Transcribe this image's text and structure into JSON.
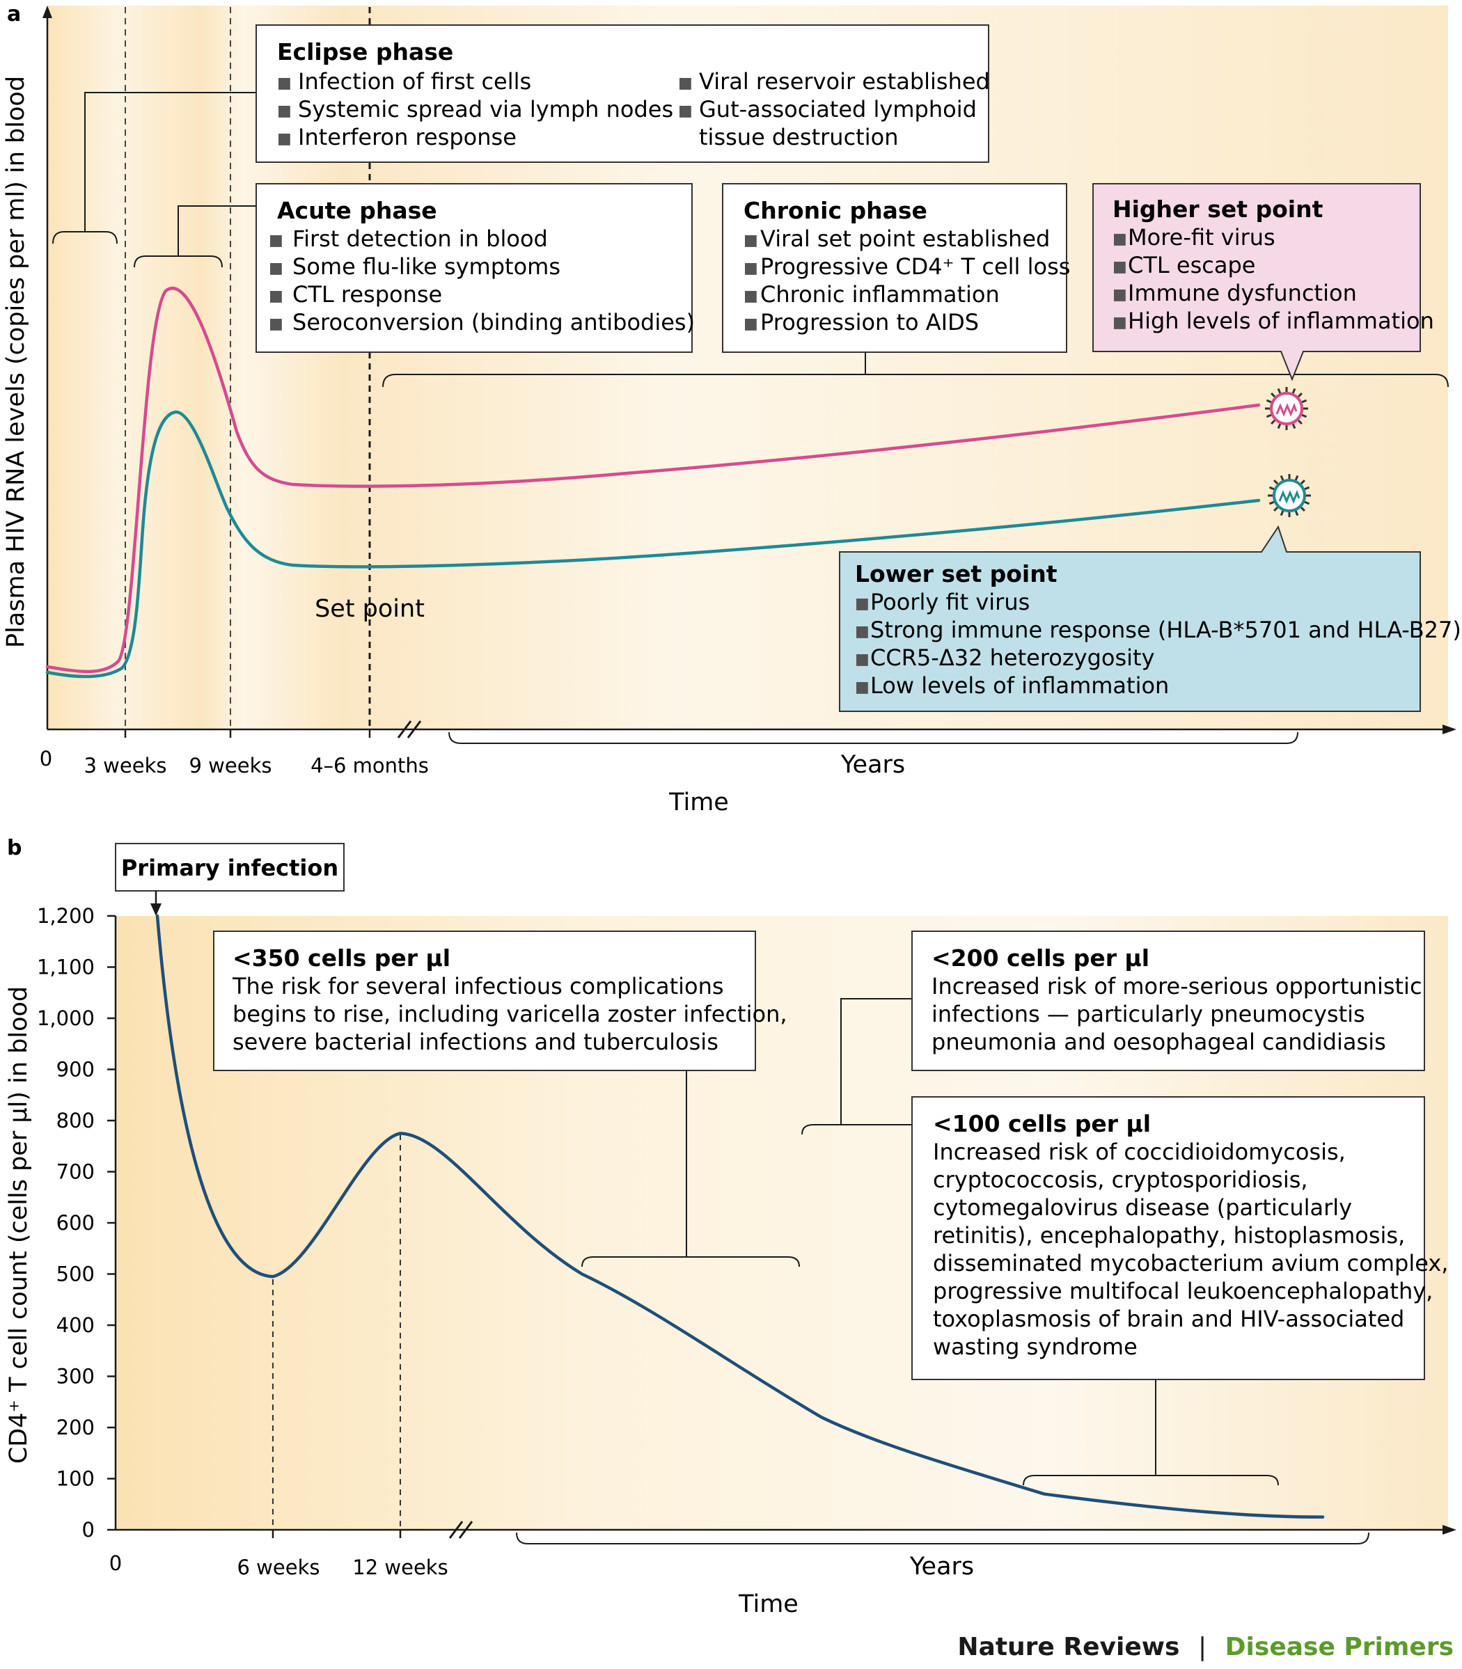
{
  "figure": {
    "footer": {
      "journal": "Nature Reviews",
      "separator": "|",
      "series": "Disease Primers"
    },
    "colors": {
      "background_light": "#fdf5e6",
      "background_warm": "#fbe7c1",
      "higher_set_point": "#d54b8f",
      "lower_set_point": "#1d8a96",
      "cd4_curve": "#1f4e79",
      "higher_box_fill": "#f5d9e6",
      "lower_box_fill": "#bfe0e8",
      "footer_accent": "#5b9b2a"
    }
  },
  "chart_data": [
    {
      "panel_label": "a",
      "type": "line",
      "ylabel": "Plasma HIV RNA levels (copies per ml) in blood",
      "xlabel": "Time",
      "x_ticks": [
        "0",
        "3 weeks",
        "9 weeks",
        "4–6 months"
      ],
      "x_years_label": "Years",
      "y_ticks": [],
      "set_point_label": "Set point",
      "series": [
        {
          "name": "Higher set point",
          "color": "#d54b8f",
          "shape": "sharp acute peak, then a set point that rises slowly over the years"
        },
        {
          "name": "Lower set point",
          "color": "#1d8a96",
          "shape": "smaller acute peak, then a lower set point that rises slowly over the years"
        }
      ],
      "annotations": {
        "eclipse": {
          "title": "Eclipse phase",
          "items_left": [
            "Infection of first cells",
            "Systemic spread via lymph nodes",
            "Interferon response"
          ],
          "items_right": [
            "Viral reservoir established",
            "Gut-associated lymphoid",
            "tissue destruction"
          ]
        },
        "acute": {
          "title": "Acute phase",
          "items": [
            "First detection in blood",
            "Some flu-like symptoms",
            "CTL response",
            "Seroconversion (binding antibodies)"
          ]
        },
        "chronic": {
          "title": "Chronic phase",
          "items": [
            "Viral set point established",
            "Progressive CD4⁺ T cell loss",
            "Chronic inflammation",
            "Progression to AIDS"
          ]
        },
        "higher": {
          "title": "Higher set point",
          "items": [
            "More-fit virus",
            "CTL escape",
            "Immune dysfunction",
            "High levels of inflammation"
          ]
        },
        "lower": {
          "title": "Lower set point",
          "items": [
            "Poorly fit virus",
            "Strong immune response (HLA-B*5701 and HLA-B27)",
            "CCR5-Δ32 heterozygosity",
            "Low levels of inflammation"
          ]
        }
      }
    },
    {
      "panel_label": "b",
      "type": "line",
      "ylabel": "CD4⁺ T cell count (cells per μl) in blood",
      "xlabel": "Time",
      "x_ticks": [
        "0",
        "6 weeks",
        "12 weeks"
      ],
      "x_years_label": "Years",
      "y_ticks": [
        "0",
        "100",
        "200",
        "300",
        "400",
        "500",
        "600",
        "700",
        "800",
        "900",
        "1,000",
        "1,100",
        "1,200"
      ],
      "ylim": [
        0,
        1200
      ],
      "primary_label": "Primary infection",
      "series": [
        {
          "name": "CD4⁺ T cell count",
          "color": "#1f4e79",
          "points": [
            {
              "x": "start",
              "y": 1200
            },
            {
              "x": "6 weeks",
              "y": 495
            },
            {
              "x": "12 weeks",
              "y": 775
            },
            {
              "x": "years",
              "y": 500
            },
            {
              "x": "years",
              "y": 350
            },
            {
              "x": "years",
              "y": 220
            },
            {
              "x": "years",
              "y": 115
            },
            {
              "x": "years",
              "y": 70
            },
            {
              "x": "years",
              "y": 40
            },
            {
              "x": "years",
              "y": 25
            }
          ]
        }
      ],
      "annotations": {
        "t350": {
          "title": "<350 cells per μl",
          "lines": [
            "The risk for several infectious complications",
            "begins to rise, including varicella zoster infection,",
            "severe bacterial infections and tuberculosis"
          ]
        },
        "t200": {
          "title": "<200 cells per μl",
          "lines": [
            "Increased risk of more-serious opportunistic",
            "infections — particularly pneumocystis",
            "pneumonia and oesophageal candidiasis"
          ]
        },
        "t100": {
          "title": "<100 cells per μl",
          "lines": [
            "Increased risk of coccidioidomycosis,",
            "cryptococcosis, cryptosporidiosis,",
            "cytomegalovirus disease (particularly",
            "retinitis), encephalopathy, histoplasmosis,",
            "disseminated mycobacterium avium complex,",
            "progressive multifocal leukoencephalopathy,",
            "toxoplasmosis of brain and HIV-associated",
            "wasting syndrome"
          ]
        }
      }
    }
  ]
}
